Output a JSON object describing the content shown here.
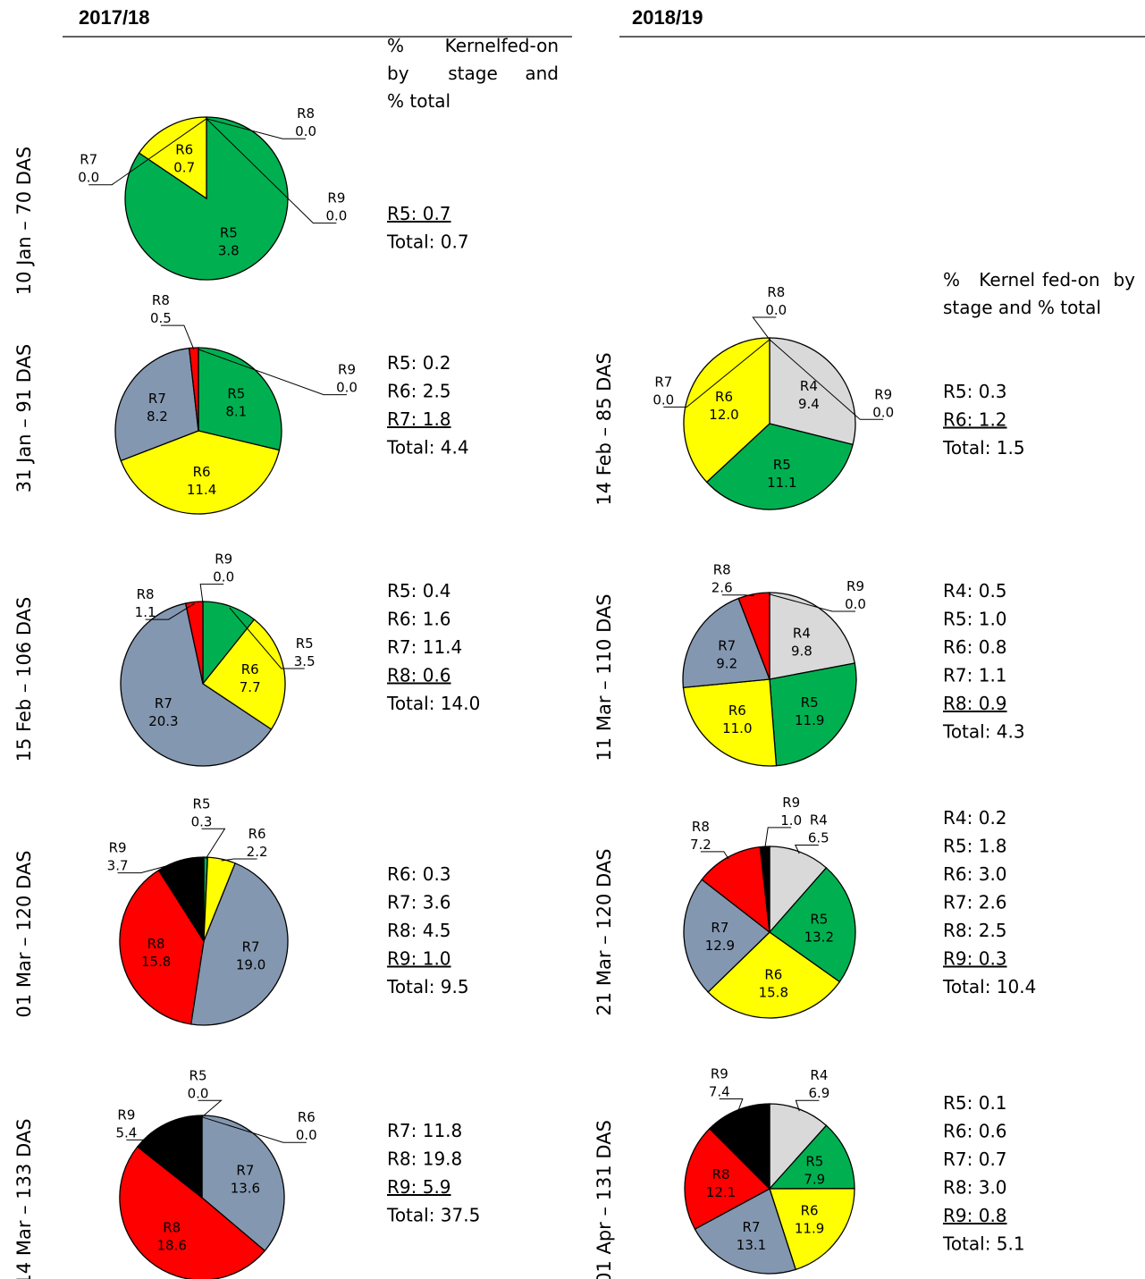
{
  "seasons": [
    "2017/18",
    "2018/19"
  ],
  "summary_header": "% Kernel fed-on by stage and % total",
  "colors": {
    "R4": "#d9d9d9",
    "R5": "#00b050",
    "R6": "#ffff00",
    "R7": "#8497b0",
    "R8": "#ff0000",
    "R9": "#000000"
  },
  "chart_data": [
    {
      "type": "pie",
      "season": "2017/18",
      "row_label": "10 Jan – 70 DAS",
      "slices": [
        {
          "label": "R5",
          "value": 3.8
        },
        {
          "label": "R6",
          "value": 0.7
        },
        {
          "label": "R7",
          "value": 0.0
        },
        {
          "label": "R8",
          "value": 0.0
        },
        {
          "label": "R9",
          "value": 0.0
        }
      ],
      "summary": [
        {
          "text": "R5: 0.7",
          "underline": true
        },
        {
          "text": "Total: 0.7",
          "underline": false
        }
      ]
    },
    {
      "type": "pie",
      "season": "2017/18",
      "row_label": "31 Jan – 91 DAS",
      "slices": [
        {
          "label": "R5",
          "value": 8.1
        },
        {
          "label": "R6",
          "value": 11.4
        },
        {
          "label": "R7",
          "value": 8.2
        },
        {
          "label": "R8",
          "value": 0.5
        },
        {
          "label": "R9",
          "value": 0.0
        }
      ],
      "summary": [
        {
          "text": "R5: 0.2",
          "underline": false
        },
        {
          "text": "R6: 2.5",
          "underline": false
        },
        {
          "text": "R7: 1.8",
          "underline": true
        },
        {
          "text": "Total: 4.4",
          "underline": false
        }
      ]
    },
    {
      "type": "pie",
      "season": "2017/18",
      "row_label": "15 Feb – 106 DAS",
      "slices": [
        {
          "label": "R5",
          "value": 3.5
        },
        {
          "label": "R6",
          "value": 7.7
        },
        {
          "label": "R7",
          "value": 20.3
        },
        {
          "label": "R8",
          "value": 1.1
        },
        {
          "label": "R9",
          "value": 0.0
        }
      ],
      "summary": [
        {
          "text": "R5: 0.4",
          "underline": false
        },
        {
          "text": "R6: 1.6",
          "underline": false
        },
        {
          "text": "R7: 11.4",
          "underline": false
        },
        {
          "text": "R8: 0.6",
          "underline": true
        },
        {
          "text": "Total: 14.0",
          "underline": false
        }
      ]
    },
    {
      "type": "pie",
      "season": "2017/18",
      "row_label": "01 Mar – 120 DAS",
      "slices": [
        {
          "label": "R5",
          "value": 0.3
        },
        {
          "label": "R6",
          "value": 2.2
        },
        {
          "label": "R7",
          "value": 19.0
        },
        {
          "label": "R8",
          "value": 15.8
        },
        {
          "label": "R9",
          "value": 3.7
        }
      ],
      "summary": [
        {
          "text": "R6: 0.3",
          "underline": false
        },
        {
          "text": "R7: 3.6",
          "underline": false
        },
        {
          "text": "R8: 4.5",
          "underline": false
        },
        {
          "text": "R9: 1.0",
          "underline": true
        },
        {
          "text": "Total: 9.5",
          "underline": false
        }
      ]
    },
    {
      "type": "pie",
      "season": "2017/18",
      "row_label": "14 Mar – 133 DAS",
      "slices": [
        {
          "label": "R5",
          "value": 0.0
        },
        {
          "label": "R6",
          "value": 0.0
        },
        {
          "label": "R7",
          "value": 13.6
        },
        {
          "label": "R8",
          "value": 18.6
        },
        {
          "label": "R9",
          "value": 5.4
        }
      ],
      "summary": [
        {
          "text": "R7: 11.8",
          "underline": false
        },
        {
          "text": "R8: 19.8",
          "underline": false
        },
        {
          "text": "R9: 5.9",
          "underline": true
        },
        {
          "text": "Total: 37.5",
          "underline": false
        }
      ]
    },
    {
      "type": "pie",
      "season": "2018/19",
      "row_label": "14 Feb – 85 DAS",
      "slices": [
        {
          "label": "R4",
          "value": 9.4
        },
        {
          "label": "R5",
          "value": 11.1
        },
        {
          "label": "R6",
          "value": 12.0
        },
        {
          "label": "R7",
          "value": 0.0
        },
        {
          "label": "R8",
          "value": 0.0
        },
        {
          "label": "R9",
          "value": 0.0
        }
      ],
      "summary": [
        {
          "text": "R5: 0.3",
          "underline": false
        },
        {
          "text": "R6: 1.2",
          "underline": true
        },
        {
          "text": "Total: 1.5",
          "underline": false
        }
      ]
    },
    {
      "type": "pie",
      "season": "2018/19",
      "row_label": "11 Mar – 110 DAS",
      "slices": [
        {
          "label": "R4",
          "value": 9.8
        },
        {
          "label": "R5",
          "value": 11.9
        },
        {
          "label": "R6",
          "value": 11.0
        },
        {
          "label": "R7",
          "value": 9.2
        },
        {
          "label": "R8",
          "value": 2.6
        },
        {
          "label": "R9",
          "value": 0.0
        }
      ],
      "summary": [
        {
          "text": "R4: 0.5",
          "underline": false
        },
        {
          "text": "R5: 1.0",
          "underline": false
        },
        {
          "text": "R6: 0.8",
          "underline": false
        },
        {
          "text": "R7: 1.1",
          "underline": false
        },
        {
          "text": "R8: 0.9",
          "underline": true
        },
        {
          "text": "Total: 4.3",
          "underline": false
        }
      ]
    },
    {
      "type": "pie",
      "season": "2018/19",
      "row_label": "21 Mar – 120 DAS",
      "slices": [
        {
          "label": "R4",
          "value": 6.5
        },
        {
          "label": "R5",
          "value": 13.2
        },
        {
          "label": "R6",
          "value": 15.8
        },
        {
          "label": "R7",
          "value": 12.9
        },
        {
          "label": "R8",
          "value": 7.2
        },
        {
          "label": "R9",
          "value": 1.0
        }
      ],
      "summary": [
        {
          "text": "R4: 0.2",
          "underline": false
        },
        {
          "text": "R5: 1.8",
          "underline": false
        },
        {
          "text": "R6: 3.0",
          "underline": false
        },
        {
          "text": "R7: 2.6",
          "underline": false
        },
        {
          "text": "R8: 2.5",
          "underline": false
        },
        {
          "text": "R9: 0.3",
          "underline": true
        },
        {
          "text": "Total: 10.4",
          "underline": false
        }
      ]
    },
    {
      "type": "pie",
      "season": "2018/19",
      "row_label": "01 Apr – 131 DAS",
      "slices": [
        {
          "label": "R4",
          "value": 6.9
        },
        {
          "label": "R5",
          "value": 7.9
        },
        {
          "label": "R6",
          "value": 11.9
        },
        {
          "label": "R7",
          "value": 13.1
        },
        {
          "label": "R8",
          "value": 12.1
        },
        {
          "label": "R9",
          "value": 7.4
        }
      ],
      "summary": [
        {
          "text": "R5: 0.1",
          "underline": false
        },
        {
          "text": "R6: 0.6",
          "underline": false
        },
        {
          "text": "R7: 0.7",
          "underline": false
        },
        {
          "text": "R8: 3.0",
          "underline": false
        },
        {
          "text": "R9: 0.8",
          "underline": true
        },
        {
          "text": "Total: 5.1",
          "underline": false
        }
      ]
    }
  ]
}
